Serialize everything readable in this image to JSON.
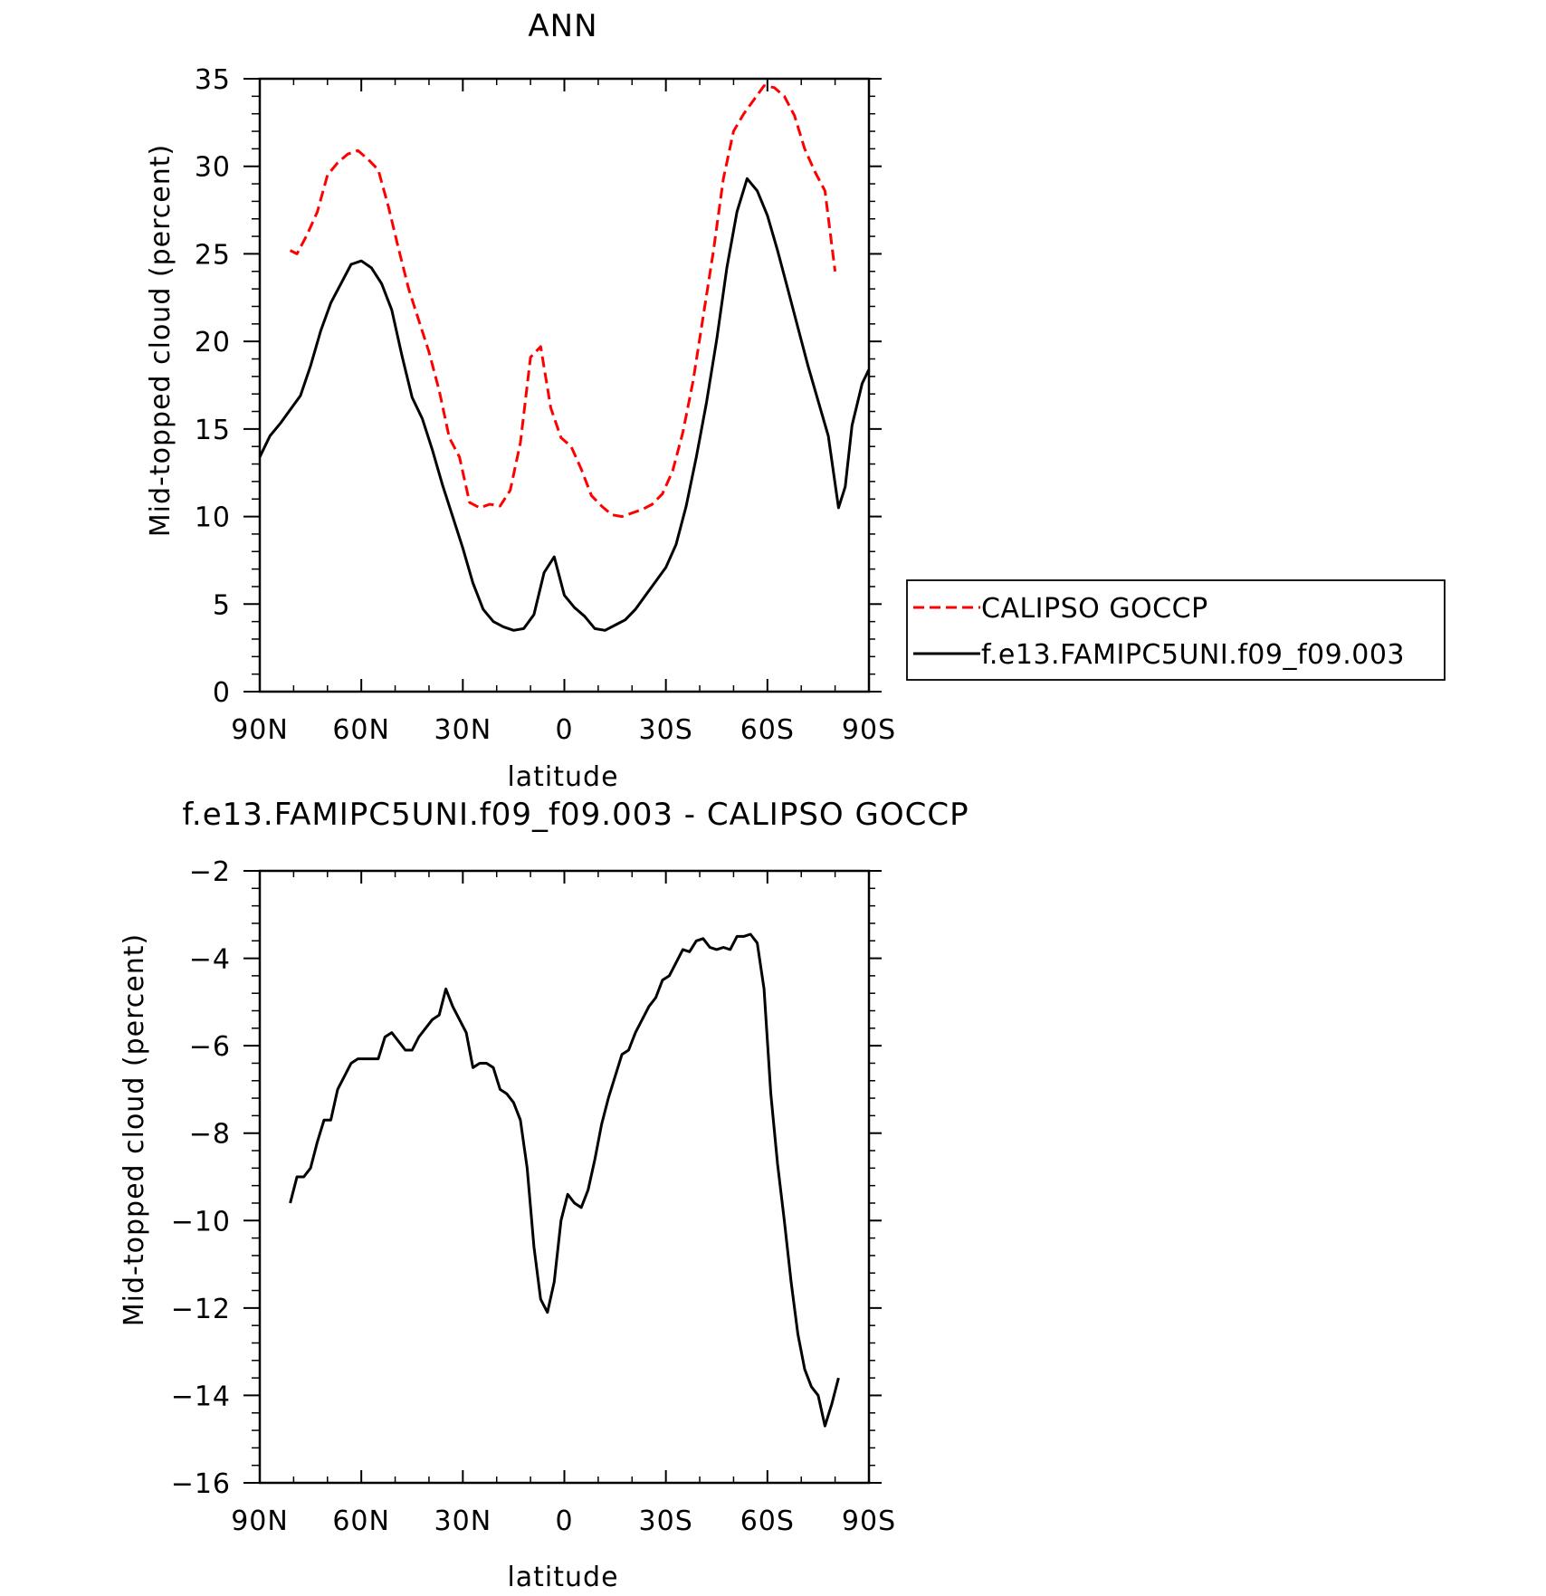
{
  "chart_data": [
    {
      "type": "line",
      "title": "ANN",
      "xlabel": "latitude",
      "ylabel": "Mid-topped cloud (percent)",
      "xlim": [
        90,
        -90
      ],
      "ylim": [
        0,
        35
      ],
      "xticks": [
        {
          "v": 90,
          "label": "90N"
        },
        {
          "v": 60,
          "label": "60N"
        },
        {
          "v": 30,
          "label": "30N"
        },
        {
          "v": 0,
          "label": "0"
        },
        {
          "v": -30,
          "label": "30S"
        },
        {
          "v": -60,
          "label": "60S"
        },
        {
          "v": -90,
          "label": "90S"
        }
      ],
      "yticks": [
        0,
        5,
        10,
        15,
        20,
        25,
        30,
        35
      ],
      "legend_position": "right",
      "series": [
        {
          "name": "CALIPSO GOCCP",
          "color": "#ff0000",
          "style": "dashed",
          "x": [
            81,
            79,
            76,
            73,
            70,
            67,
            64,
            61,
            58,
            55,
            52,
            49,
            46,
            43,
            40,
            37,
            34,
            31,
            28,
            25,
            22,
            19,
            16,
            13,
            10,
            7,
            4,
            1,
            -2,
            -5,
            -8,
            -11,
            -14,
            -17,
            -20,
            -23,
            -26,
            -29,
            -32,
            -35,
            -38,
            -41,
            -44,
            -47,
            -50,
            -53,
            -56,
            -59,
            -62,
            -65,
            -68,
            -71,
            -74,
            -77,
            -80
          ],
          "y": [
            25.2,
            25.0,
            26.1,
            27.4,
            29.5,
            30.2,
            30.7,
            30.9,
            30.4,
            29.8,
            27.7,
            25.3,
            23.0,
            21.2,
            19.4,
            17.2,
            14.5,
            13.4,
            10.8,
            10.5,
            10.7,
            10.6,
            11.5,
            14.2,
            19.1,
            19.7,
            16.2,
            14.5,
            14.0,
            12.7,
            11.2,
            10.6,
            10.1,
            10.0,
            10.2,
            10.4,
            10.7,
            11.3,
            12.6,
            14.8,
            17.7,
            21.4,
            25.1,
            29.3,
            32.0,
            33.0,
            33.8,
            34.6,
            34.5,
            34.0,
            32.9,
            31.0,
            29.7,
            28.6,
            24.0
          ]
        },
        {
          "name": "f.e13.FAMIPC5UNI.f09_f09.003",
          "color": "#000000",
          "style": "solid",
          "x": [
            90,
            87,
            84,
            81,
            78,
            75,
            72,
            69,
            66,
            63,
            60,
            57,
            54,
            51,
            48,
            45,
            42,
            39,
            36,
            33,
            30,
            27,
            24,
            21,
            18,
            15,
            12,
            9,
            6,
            3,
            0,
            -3,
            -6,
            -9,
            -12,
            -15,
            -18,
            -21,
            -24,
            -27,
            -30,
            -33,
            -36,
            -39,
            -42,
            -45,
            -48,
            -51,
            -54,
            -57,
            -60,
            -63,
            -66,
            -69,
            -72,
            -75,
            -78,
            -81,
            -83,
            -85,
            -88,
            -90
          ],
          "y": [
            13.4,
            14.6,
            15.3,
            16.1,
            16.9,
            18.6,
            20.6,
            22.2,
            23.3,
            24.4,
            24.6,
            24.2,
            23.3,
            21.8,
            19.2,
            16.8,
            15.6,
            13.8,
            11.8,
            10.0,
            8.2,
            6.2,
            4.7,
            4.0,
            3.7,
            3.5,
            3.6,
            4.4,
            6.8,
            7.7,
            5.5,
            4.8,
            4.3,
            3.6,
            3.5,
            3.8,
            4.1,
            4.7,
            5.5,
            6.3,
            7.1,
            8.4,
            10.6,
            13.4,
            16.5,
            20.1,
            24.2,
            27.4,
            29.3,
            28.6,
            27.2,
            25.2,
            23.0,
            20.8,
            18.6,
            16.6,
            14.6,
            10.5,
            11.7,
            15.2,
            17.6,
            18.4
          ]
        }
      ]
    },
    {
      "type": "line",
      "title": "f.e13.FAMIPC5UNI.f09_f09.003 - CALIPSO GOCCP",
      "xlabel": "latitude",
      "ylabel": "Mid-topped cloud (percent)",
      "xlim": [
        90,
        -90
      ],
      "ylim": [
        -16,
        -2
      ],
      "xticks": [
        {
          "v": 90,
          "label": "90N"
        },
        {
          "v": 60,
          "label": "60N"
        },
        {
          "v": 30,
          "label": "30N"
        },
        {
          "v": 0,
          "label": "0"
        },
        {
          "v": -30,
          "label": "30S"
        },
        {
          "v": -60,
          "label": "60S"
        },
        {
          "v": -90,
          "label": "90S"
        }
      ],
      "yticks": [
        -16,
        -14,
        -12,
        -10,
        -8,
        -6,
        -4,
        -2
      ],
      "series": [
        {
          "color": "#000000",
          "style": "solid",
          "x": [
            81,
            79,
            77,
            75,
            73,
            71,
            69,
            67,
            65,
            63,
            61,
            59,
            57,
            55,
            53,
            51,
            49,
            47,
            45,
            43,
            41,
            39,
            37,
            35,
            33,
            31,
            29,
            27,
            25,
            23,
            21,
            19,
            17,
            15,
            13,
            11,
            9,
            7,
            5,
            3,
            1,
            -1,
            -3,
            -5,
            -7,
            -9,
            -11,
            -13,
            -15,
            -17,
            -19,
            -21,
            -23,
            -25,
            -27,
            -29,
            -31,
            -33,
            -35,
            -37,
            -39,
            -41,
            -43,
            -45,
            -47,
            -49,
            -51,
            -53,
            -55,
            -57,
            -59,
            -61,
            -63,
            -65,
            -67,
            -69,
            -71,
            -73,
            -75,
            -77,
            -79,
            -81
          ],
          "y": [
            -9.6,
            -9.0,
            -9.0,
            -8.8,
            -8.2,
            -7.7,
            -7.7,
            -7.0,
            -6.7,
            -6.4,
            -6.3,
            -6.3,
            -6.3,
            -6.3,
            -5.8,
            -5.7,
            -5.9,
            -6.1,
            -6.1,
            -5.8,
            -5.6,
            -5.4,
            -5.3,
            -4.7,
            -5.1,
            -5.4,
            -5.7,
            -6.5,
            -6.4,
            -6.4,
            -6.5,
            -7.0,
            -7.1,
            -7.3,
            -7.7,
            -8.8,
            -10.6,
            -11.8,
            -12.1,
            -11.4,
            -10.0,
            -9.4,
            -9.6,
            -9.7,
            -9.3,
            -8.6,
            -7.8,
            -7.2,
            -6.7,
            -6.2,
            -6.1,
            -5.7,
            -5.4,
            -5.1,
            -4.9,
            -4.5,
            -4.4,
            -4.1,
            -3.8,
            -3.85,
            -3.6,
            -3.55,
            -3.75,
            -3.8,
            -3.75,
            -3.8,
            -3.5,
            -3.5,
            -3.45,
            -3.65,
            -4.7,
            -7.1,
            -8.7,
            -10.0,
            -11.4,
            -12.6,
            -13.4,
            -13.8,
            -14.0,
            -14.7,
            -14.2,
            -13.6
          ]
        }
      ]
    }
  ]
}
